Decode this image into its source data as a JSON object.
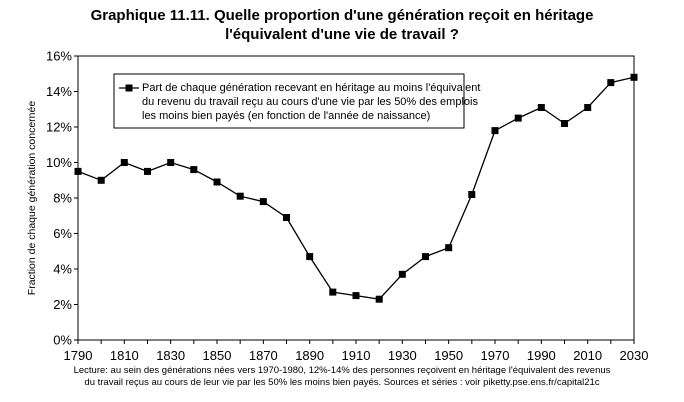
{
  "chart_data": {
    "type": "line",
    "title": [
      "Graphique 11.11. Quelle proportion d'une génération reçoit en héritage",
      "l'équivalent d'une vie de travail ?"
    ],
    "ylabel": "Fraction de chaque génération concernée",
    "xlabel": "",
    "xlim": [
      1790,
      2030
    ],
    "ylim": [
      0,
      0.16
    ],
    "x_ticks": [
      "1790",
      "1810",
      "1830",
      "1850",
      "1870",
      "1890",
      "1910",
      "1930",
      "1950",
      "1970",
      "1990",
      "2010",
      "2030"
    ],
    "y_ticks": [
      "0%",
      "2%",
      "4%",
      "6%",
      "8%",
      "10%",
      "12%",
      "14%",
      "16%"
    ],
    "grid": false,
    "legend_position": "top-left-inside",
    "series": [
      {
        "name": [
          "Part de chaque génération recevant en héritage au moins l'équivalent",
          "du revenu du travail reçu au cours d'une vie par les 50% des emplois",
          "les moins bien payés (en fonction de l'année de naissance)"
        ],
        "marker": "square",
        "color": "#000000",
        "x": [
          1790,
          1800,
          1810,
          1820,
          1830,
          1840,
          1850,
          1860,
          1870,
          1880,
          1890,
          1900,
          1910,
          1920,
          1930,
          1940,
          1950,
          1960,
          1970,
          1980,
          1990,
          2000,
          2010,
          2020,
          2030
        ],
        "y": [
          0.095,
          0.09,
          0.1,
          0.095,
          0.1,
          0.096,
          0.089,
          0.081,
          0.078,
          0.069,
          0.047,
          0.027,
          0.025,
          0.023,
          0.037,
          0.047,
          0.052,
          0.082,
          0.118,
          0.125,
          0.131,
          0.122,
          0.131,
          0.145,
          0.148
        ]
      }
    ],
    "caption": [
      "Lecture: au sein des générations nées vers 1970-1980, 12%-14% des personnes reçoivent en héritage l'équivalent des revenus",
      "du travail reçus au cours de leur vie par les 50% les moins bien payés. Sources et séries : voir piketty.pse.ens.fr/capital21c"
    ]
  }
}
